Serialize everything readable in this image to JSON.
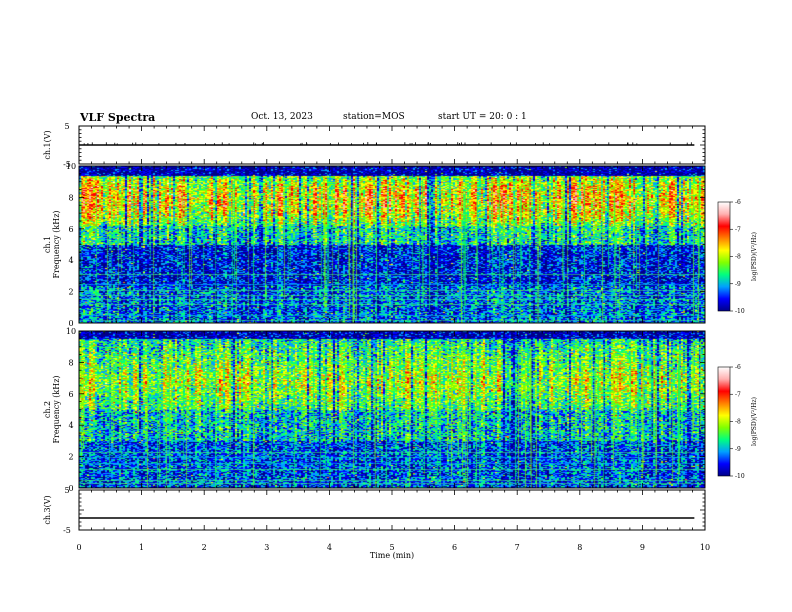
{
  "header": {
    "title": "VLF Spectra",
    "date": "Oct. 13, 2023",
    "station": "station=MOS",
    "start": "start  UT =   20: 0  : 1"
  },
  "colors": {
    "colormap": [
      "#000088",
      "#0000ff",
      "#00a0ff",
      "#00ff80",
      "#80ff00",
      "#ffff00",
      "#ff8000",
      "#ff0000",
      "#ffb0b0",
      "#ffffff"
    ]
  },
  "chart_data": [
    {
      "type": "line",
      "name": "ch.1(V)",
      "ylabel": "ch.1(V)",
      "ylim": [
        -5,
        5
      ],
      "yticks": [
        "5",
        "-5"
      ],
      "x_range": [
        0,
        9.83
      ],
      "value": 0
    },
    {
      "type": "heatmap",
      "ylabel": "ch.1",
      "ylabel2": "Frequency (kHz)",
      "ylim": [
        0,
        10
      ],
      "yticks": [
        "0",
        "2",
        "4",
        "6",
        "8",
        "10"
      ],
      "colorbar": {
        "label": "log(PSD)(V²/Hz)",
        "ticks": [
          "-6",
          "-7",
          "-8",
          "-9",
          "-10"
        ],
        "range": [
          -10,
          -6
        ]
      }
    },
    {
      "type": "heatmap",
      "ylabel": "ch.2",
      "ylabel2": "Frequency (kHz)",
      "ylim": [
        0,
        10
      ],
      "yticks": [
        "0",
        "2",
        "4",
        "6",
        "8",
        "10"
      ],
      "colorbar": {
        "label": "log(PSD)(V²/Hz)",
        "ticks": [
          "-6",
          "-7",
          "-8",
          "-9",
          "-10"
        ],
        "range": [
          -10,
          -6
        ]
      }
    },
    {
      "type": "line",
      "name": "ch.3(V)",
      "ylabel": "ch.3(V)",
      "ylim": [
        -5,
        5
      ],
      "yticks": [
        "5",
        "-5"
      ],
      "x_range": [
        0,
        9.83
      ],
      "value": -2
    }
  ],
  "xaxis": {
    "label": "Time (min)",
    "ticks": [
      "0",
      "1",
      "2",
      "3",
      "4",
      "5",
      "6",
      "7",
      "8",
      "9",
      "10"
    ],
    "xlim": [
      0,
      10
    ]
  }
}
